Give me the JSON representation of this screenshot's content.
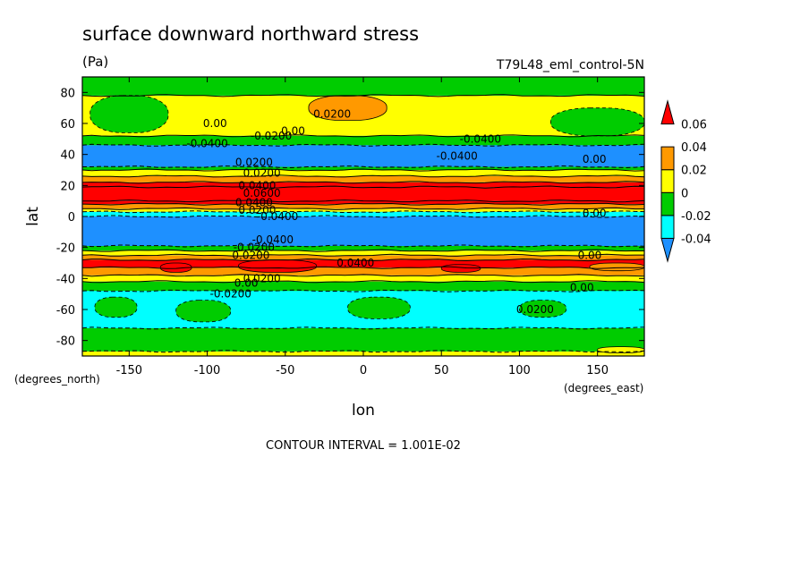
{
  "chart_data": {
    "type": "heatmap",
    "title": "surface downward northward stress",
    "units": "(Pa)",
    "dataset": "T79L48_eml_control-5N",
    "xlabel": "lon",
    "ylabel": "lat",
    "x_units": "(degrees_east)",
    "y_units": "(degrees_north)",
    "xlim": [
      -180,
      180
    ],
    "ylim": [
      -90,
      90
    ],
    "x_ticks": [
      -150,
      -100,
      -50,
      0,
      50,
      100,
      150
    ],
    "y_ticks": [
      -80,
      -60,
      -40,
      -20,
      0,
      20,
      40,
      60,
      80
    ],
    "x_tick_labels": [
      "-150",
      "-100",
      "-50",
      "0",
      "50",
      "100",
      "150"
    ],
    "y_tick_labels": [
      "-80",
      "-60",
      "-40",
      "-20",
      "0",
      "20",
      "40",
      "60",
      "80"
    ],
    "colorbar": {
      "levels": [
        -0.06,
        -0.04,
        -0.02,
        0,
        0.02,
        0.04,
        0.06
      ],
      "tick_labels": [
        "-0.04",
        "-0.02",
        "0",
        "0.02",
        "0.04",
        "0.06"
      ],
      "colors": [
        "#1e90ff",
        "#00ffff",
        "#00cc00",
        "#ffff00",
        "#ff9900",
        "#ff0000"
      ]
    },
    "contour_interval_text": "CONTOUR INTERVAL = 1.001E-02",
    "zonal_bands": [
      {
        "lat_min": -90,
        "lat_max": -87,
        "value": 0.005
      },
      {
        "lat_min": -87,
        "lat_max": -72,
        "value": -0.01
      },
      {
        "lat_min": -72,
        "lat_max": -48,
        "value": -0.03
      },
      {
        "lat_min": -48,
        "lat_max": -42,
        "value": -0.01
      },
      {
        "lat_min": -42,
        "lat_max": -38,
        "value": 0.01
      },
      {
        "lat_min": -38,
        "lat_max": -33,
        "value": 0.03
      },
      {
        "lat_min": -33,
        "lat_max": -28,
        "value": 0.045
      },
      {
        "lat_min": -28,
        "lat_max": -25,
        "value": 0.03
      },
      {
        "lat_min": -25,
        "lat_max": -22,
        "value": 0.01
      },
      {
        "lat_min": -22,
        "lat_max": -19,
        "value": -0.01
      },
      {
        "lat_min": -19,
        "lat_max": 0,
        "value": -0.05
      },
      {
        "lat_min": 0,
        "lat_max": 3,
        "value": -0.03
      },
      {
        "lat_min": 3,
        "lat_max": 5,
        "value": 0.01
      },
      {
        "lat_min": 5,
        "lat_max": 8,
        "value": 0.03
      },
      {
        "lat_min": 8,
        "lat_max": 10,
        "value": 0.045
      },
      {
        "lat_min": 10,
        "lat_max": 19,
        "value": 0.07
      },
      {
        "lat_min": 19,
        "lat_max": 22,
        "value": 0.045
      },
      {
        "lat_min": 22,
        "lat_max": 26,
        "value": 0.03
      },
      {
        "lat_min": 26,
        "lat_max": 30,
        "value": 0.01
      },
      {
        "lat_min": 30,
        "lat_max": 32,
        "value": -0.01
      },
      {
        "lat_min": 32,
        "lat_max": 46,
        "value": -0.05
      },
      {
        "lat_min": 46,
        "lat_max": 52,
        "value": -0.01
      },
      {
        "lat_min": 52,
        "lat_max": 78,
        "value": 0.01
      },
      {
        "lat_min": 78,
        "lat_max": 90,
        "value": -0.01
      }
    ],
    "regional_patches": [
      {
        "lon": [
          -175,
          -125
        ],
        "lat": [
          54,
          78
        ],
        "value": -0.01
      },
      {
        "lon": [
          -35,
          15
        ],
        "lat": [
          62,
          78
        ],
        "value": 0.03
      },
      {
        "lon": [
          120,
          180
        ],
        "lat": [
          52,
          70
        ],
        "value": -0.01
      },
      {
        "lon": [
          -172,
          -145
        ],
        "lat": [
          -65,
          -52
        ],
        "value": -0.01
      },
      {
        "lon": [
          -120,
          -85
        ],
        "lat": [
          -68,
          -54
        ],
        "value": -0.01
      },
      {
        "lon": [
          -10,
          30
        ],
        "lat": [
          -66,
          -52
        ],
        "value": -0.01
      },
      {
        "lon": [
          100,
          130
        ],
        "lat": [
          -65,
          -54
        ],
        "value": -0.01
      },
      {
        "lon": [
          -80,
          -30
        ],
        "lat": [
          -36,
          -28
        ],
        "value": 0.045
      },
      {
        "lon": [
          -130,
          -110
        ],
        "lat": [
          -36,
          -30
        ],
        "value": 0.045
      },
      {
        "lon": [
          50,
          75
        ],
        "lat": [
          -36,
          -31
        ],
        "value": 0.045
      },
      {
        "lon": [
          145,
          180
        ],
        "lat": [
          -35,
          -30
        ],
        "value": 0.03
      },
      {
        "lon": [
          150,
          180
        ],
        "lat": [
          -88,
          -84
        ],
        "value": 0.01
      }
    ],
    "contour_labels": [
      {
        "lon": -95,
        "lat": 60,
        "text": "0.00"
      },
      {
        "lon": -100,
        "lat": 47,
        "text": "-0.0400"
      },
      {
        "lon": -59,
        "lat": 52,
        "text": "-0.0200"
      },
      {
        "lon": -45,
        "lat": 55,
        "text": "0.00"
      },
      {
        "lon": -20,
        "lat": 66,
        "text": "0.0200"
      },
      {
        "lon": 75,
        "lat": 50,
        "text": "-0.0400"
      },
      {
        "lon": 60,
        "lat": 39,
        "text": "-0.0400"
      },
      {
        "lon": 148,
        "lat": 37,
        "text": "0.00"
      },
      {
        "lon": -70,
        "lat": 35,
        "text": "0.0200"
      },
      {
        "lon": -65,
        "lat": 28,
        "text": "0.0200"
      },
      {
        "lon": -68,
        "lat": 20,
        "text": "0.0400"
      },
      {
        "lon": -65,
        "lat": 15,
        "text": "0.0600"
      },
      {
        "lon": -70,
        "lat": 9,
        "text": "0.0400"
      },
      {
        "lon": -68,
        "lat": 4,
        "text": "0.0200"
      },
      {
        "lon": -55,
        "lat": 0,
        "text": "-0.0400"
      },
      {
        "lon": 148,
        "lat": 2,
        "text": "0.00"
      },
      {
        "lon": -58,
        "lat": -15,
        "text": "-0.0400"
      },
      {
        "lon": -70,
        "lat": -20,
        "text": "-0.0200"
      },
      {
        "lon": -72,
        "lat": -25,
        "text": "0.0200"
      },
      {
        "lon": -5,
        "lat": -30,
        "text": "0.0400"
      },
      {
        "lon": 145,
        "lat": -25,
        "text": "0.00"
      },
      {
        "lon": -65,
        "lat": -40,
        "text": "0.0200"
      },
      {
        "lon": -75,
        "lat": -43,
        "text": "0.00"
      },
      {
        "lon": -85,
        "lat": -50,
        "text": "-0.0200"
      },
      {
        "lon": 140,
        "lat": -46,
        "text": "0.00"
      },
      {
        "lon": 110,
        "lat": -60,
        "text": "0.0200"
      }
    ]
  }
}
